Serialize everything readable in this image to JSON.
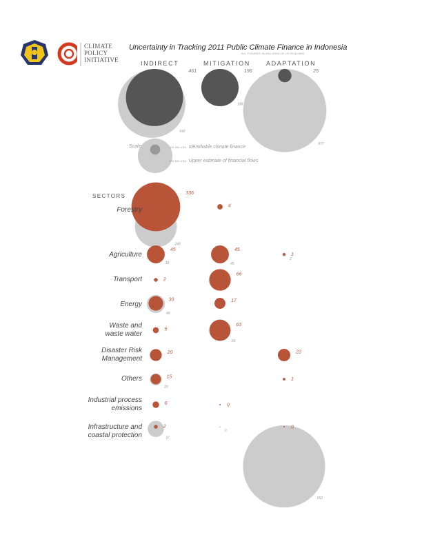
{
  "logo": {
    "org_line1": "CLIMATE",
    "org_line2": "POLICY",
    "org_line3": "INITIATIVE"
  },
  "colors": {
    "identifiable": "#b85438",
    "upper_estimate": "#cccccc",
    "indirect_identifiable": "#555555"
  },
  "chart_data": {
    "type": "bubble",
    "title": "Uncertainty in Tracking 2011 Public Climate Finance in Indonesia",
    "subtitle": "ALL FIGURES IN MILLIONS OF US DOLLARS",
    "columns": [
      "INDIRECT",
      "MITIGATION",
      "ADAPTATION"
    ],
    "sectors_heading": "SECTORS",
    "scale": {
      "title": "Scale:",
      "identifiable": {
        "value_label": "100 MN USD",
        "label": "Identifiable climate finance"
      },
      "upper": {
        "value_label": "300 MN USD",
        "label": "Upper estimate of financial flows"
      }
    },
    "totals": [
      {
        "column": "INDIRECT",
        "identifiable": 461,
        "upper": 642
      },
      {
        "column": "MITIGATION",
        "identifiable": 196,
        "upper": 198
      },
      {
        "column": "ADAPTATION",
        "identifiable": 25,
        "upper": 977
      }
    ],
    "sectors": [
      {
        "name": "Forestry",
        "indirect": [
          336,
          248
        ],
        "mitigation": [
          4,
          null
        ],
        "adaptation": null
      },
      {
        "name": "Agriculture",
        "indirect": [
          45,
          33
        ],
        "mitigation": [
          45,
          45
        ],
        "adaptation": [
          1,
          2
        ]
      },
      {
        "name": "Transport",
        "indirect": [
          2,
          null
        ],
        "mitigation": [
          66,
          null
        ],
        "adaptation": null
      },
      {
        "name": "Energy",
        "indirect": [
          30,
          46
        ],
        "mitigation": [
          17,
          null
        ],
        "adaptation": null
      },
      {
        "name": "Waste and waste water",
        "indirect": [
          5,
          null
        ],
        "mitigation": [
          63,
          65
        ],
        "adaptation": null
      },
      {
        "name": "Disaster Risk Management",
        "indirect": [
          20,
          null
        ],
        "mitigation": null,
        "adaptation": [
          22,
          null
        ]
      },
      {
        "name": "Others",
        "indirect": [
          15,
          20
        ],
        "mitigation": null,
        "adaptation": [
          1,
          null
        ]
      },
      {
        "name": "Industrial process emissions",
        "indirect": [
          6,
          null
        ],
        "mitigation": [
          0,
          null
        ],
        "adaptation": null
      },
      {
        "name": "Infrastructure and coastal protection",
        "indirect": [
          2,
          37
        ],
        "mitigation": [
          null,
          0
        ],
        "adaptation": [
          0,
          952
        ]
      }
    ]
  }
}
